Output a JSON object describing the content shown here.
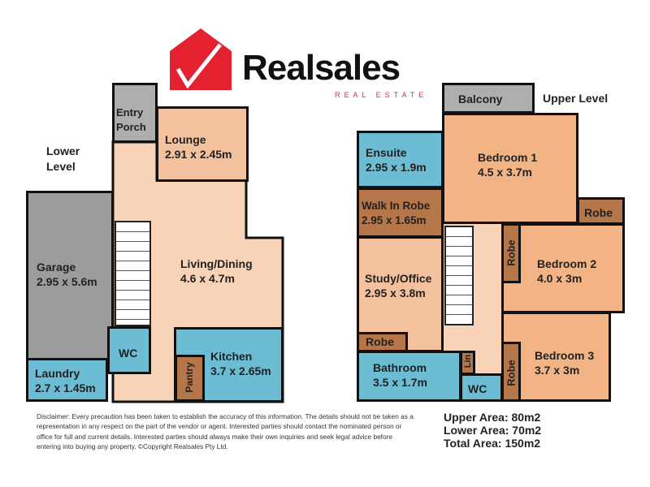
{
  "logo": {
    "brand": "Realsales",
    "tagline": "REAL ESTATE",
    "color": "#e3212f"
  },
  "lower_level": {
    "title_line1": "Lower",
    "title_line2": "Level",
    "rooms": {
      "entry_porch": {
        "line1": "Entry",
        "line2": "Porch"
      },
      "lounge": {
        "name": "Lounge",
        "size": "2.91 x 2.45m"
      },
      "living_dining": {
        "name": "Living/Dining",
        "size": "4.6 x 4.7m"
      },
      "garage": {
        "name": "Garage",
        "size": "2.95 x 5.6m"
      },
      "wc": {
        "name": "WC"
      },
      "laundry": {
        "name": "Laundry",
        "size": "2.7 x 1.45m"
      },
      "kitchen": {
        "name": "Kitchen",
        "size": "3.7 x 2.65m"
      },
      "pantry": {
        "name": "Pantry"
      }
    }
  },
  "upper_level": {
    "title": "Upper Level",
    "rooms": {
      "balcony": {
        "name": "Balcony"
      },
      "bedroom1": {
        "name": "Bedroom 1",
        "size": "4.5 x 3.7m"
      },
      "ensuite": {
        "name": "Ensuite",
        "size": "2.95 x 1.9m"
      },
      "walk_in_robe": {
        "name": "Walk In Robe",
        "size": "2.95 x 1.65m"
      },
      "robe_bed1": {
        "name": "Robe"
      },
      "robe_bed2": {
        "name": "Robe"
      },
      "bedroom2": {
        "name": "Bedroom 2",
        "size": "4.0 x 3m"
      },
      "study": {
        "name": "Study/Office",
        "size": "2.95 x 3.8m"
      },
      "robe_study": {
        "name": "Robe"
      },
      "bathroom": {
        "name": "Bathroom",
        "size": "3.5 x 1.7m"
      },
      "linen": {
        "name": "Lin"
      },
      "wc": {
        "name": "WC"
      },
      "robe_bed3": {
        "name": "Robe"
      },
      "bedroom3": {
        "name": "Bedroom 3",
        "size": "3.7 x 3m"
      }
    }
  },
  "disclaimer": "Disclaimer: Every precaution has been taken to establish the accuracy of this information. The details should not be taken as a representation in any respect on the part of the vendor or agent. Interested parties should contact the nominated person or office for full and current details. Interested parties should always make their own inquiries and seek legal advice before entering into buying any property. ©Copyright Realsales Pty Ltd.",
  "areas": {
    "upper": "Upper Area: 80m2",
    "lower": "Lower Area: 70m2",
    "total": "Total Area: 150m2"
  }
}
